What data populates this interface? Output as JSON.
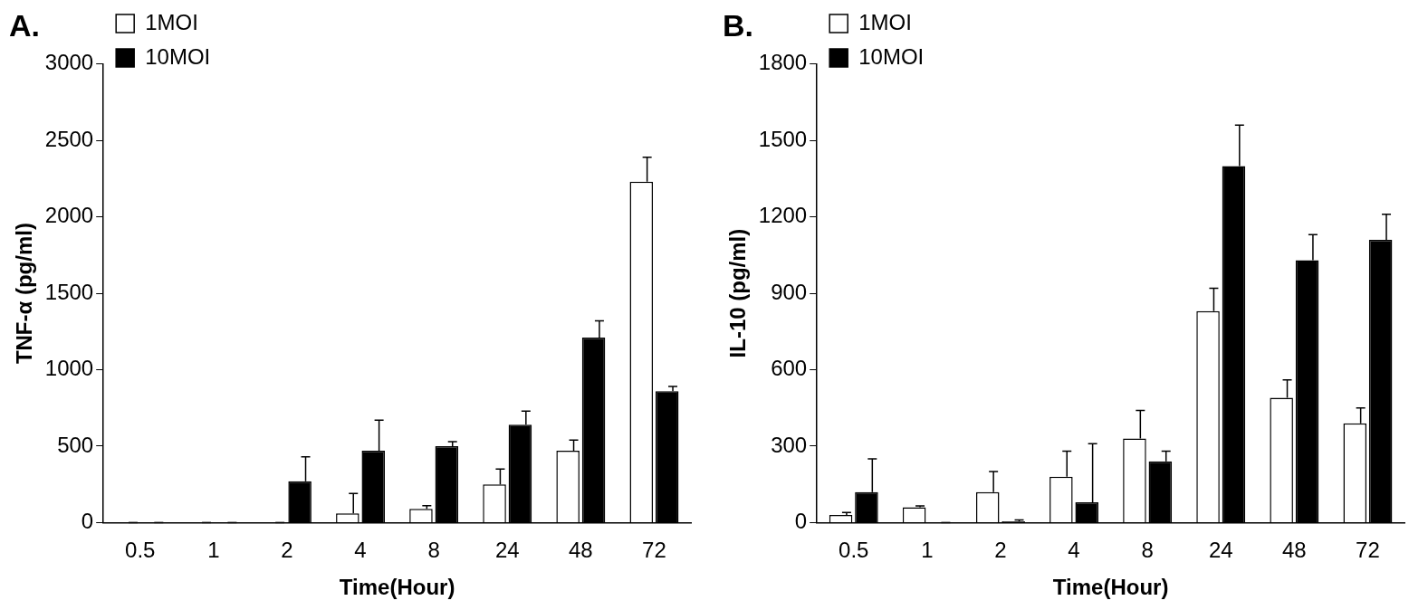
{
  "chart_data": [
    {
      "type": "bar",
      "title": "A.",
      "x_label": "Time(Hour)",
      "y_label": "TNF-α (pg/ml)",
      "categories": [
        "0.5",
        "1",
        "2",
        "4",
        "8",
        "24",
        "48",
        "72"
      ],
      "series": [
        {
          "name": "1MOI",
          "color": "#ffffff",
          "values": [
            0,
            0,
            0,
            60,
            90,
            250,
            470,
            2230
          ],
          "errors": [
            0,
            0,
            0,
            130,
            20,
            100,
            70,
            160
          ]
        },
        {
          "name": "10MOI",
          "color": "#000000",
          "values": [
            0,
            0,
            270,
            470,
            500,
            640,
            1210,
            860
          ],
          "errors": [
            0,
            0,
            160,
            200,
            30,
            90,
            110,
            30
          ]
        }
      ],
      "ylim": [
        0,
        3000
      ],
      "yticks": [
        0,
        500,
        1000,
        1500,
        2000,
        2500,
        3000
      ],
      "grid": false,
      "legend": "top-left"
    },
    {
      "type": "bar",
      "title": "B.",
      "x_label": "Time(Hour)",
      "y_label": "IL-10 (pg/ml)",
      "categories": [
        "0.5",
        "1",
        "2",
        "4",
        "8",
        "24",
        "48",
        "72"
      ],
      "series": [
        {
          "name": "1MOI",
          "color": "#ffffff",
          "values": [
            30,
            60,
            120,
            180,
            330,
            830,
            490,
            390
          ],
          "errors": [
            10,
            5,
            80,
            100,
            110,
            90,
            70,
            60
          ]
        },
        {
          "name": "10MOI",
          "color": "#000000",
          "values": [
            120,
            0,
            5,
            80,
            240,
            1400,
            1030,
            1110
          ],
          "errors": [
            130,
            0,
            5,
            230,
            40,
            160,
            100,
            100
          ]
        }
      ],
      "ylim": [
        0,
        1800
      ],
      "yticks": [
        0,
        300,
        600,
        900,
        1200,
        1500,
        1800
      ],
      "grid": false,
      "legend": "top-left"
    }
  ]
}
